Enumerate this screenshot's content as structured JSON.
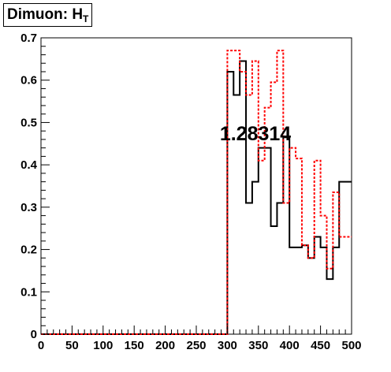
{
  "chart_data": {
    "type": "step",
    "title": "Dimuon: H",
    "title_subscript": "T",
    "xlabel": "",
    "ylabel": "",
    "xlim": [
      0,
      500
    ],
    "ylim": [
      0,
      0.7
    ],
    "x_ticks": [
      0,
      50,
      100,
      150,
      200,
      250,
      300,
      350,
      400,
      450,
      500
    ],
    "y_ticks": [
      0,
      0.1,
      0.2,
      0.3,
      0.4,
      0.5,
      0.6,
      0.7
    ],
    "x_tick_labels": [
      "0",
      "50",
      "100",
      "150",
      "200",
      "250",
      "300",
      "350",
      "400",
      "450",
      "500"
    ],
    "y_tick_labels": [
      "0",
      "0.1",
      "0.2",
      "0.3",
      "0.4",
      "0.5",
      "0.6",
      "0.7"
    ],
    "annotation": "1.28314",
    "grid": false,
    "bin_edges": [
      0,
      10,
      20,
      30,
      40,
      50,
      60,
      70,
      80,
      90,
      100,
      110,
      120,
      130,
      140,
      150,
      160,
      170,
      180,
      190,
      200,
      210,
      220,
      230,
      240,
      250,
      260,
      270,
      280,
      290,
      300,
      310,
      320,
      330,
      340,
      350,
      360,
      370,
      380,
      390,
      400,
      410,
      420,
      430,
      440,
      450,
      460,
      470,
      480,
      490,
      500
    ],
    "series": [
      {
        "color": "#000000",
        "style": "solid",
        "values": [
          0,
          0,
          0,
          0,
          0,
          0,
          0,
          0,
          0,
          0,
          0,
          0,
          0,
          0,
          0,
          0,
          0,
          0,
          0,
          0,
          0,
          0,
          0,
          0,
          0,
          0,
          0,
          0,
          0,
          0,
          0.62,
          0.565,
          0.645,
          0.31,
          0.36,
          0.44,
          0.44,
          0.255,
          0.31,
          0.465,
          0.205,
          0.205,
          0.21,
          0.18,
          0.23,
          0.205,
          0.13,
          0.205,
          0.36,
          0.36
        ]
      },
      {
        "color": "#ff0000",
        "style": "dashed",
        "values": [
          0,
          0,
          0,
          0,
          0,
          0,
          0,
          0,
          0,
          0,
          0,
          0,
          0,
          0,
          0,
          0,
          0,
          0,
          0,
          0,
          0,
          0,
          0,
          0,
          0,
          0,
          0,
          0,
          0,
          0,
          0.67,
          0.67,
          0.62,
          0.565,
          0.645,
          0.41,
          0.535,
          0.595,
          0.67,
          0.31,
          0.44,
          0.415,
          0.21,
          0.18,
          0.41,
          0.28,
          0.155,
          0.335,
          0.23,
          0.23
        ]
      }
    ]
  }
}
